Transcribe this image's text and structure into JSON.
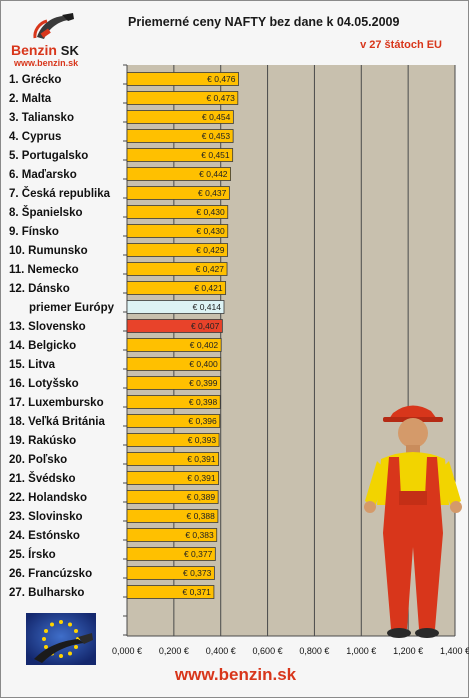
{
  "header": {
    "title": "Priemerné ceny NAFTY bez dane k 04.05.2009",
    "subtitle": "v 27 štátoch EU"
  },
  "logo": {
    "brand": "Benzin",
    "brand_suffix": "SK",
    "url": "www.benzin.sk"
  },
  "footer": {
    "url": "www.benzin.sk"
  },
  "colors": {
    "bar_default": "#ffc000",
    "bar_average": "#ddf3f5",
    "bar_slovakia": "#e8432a",
    "label_average": "#5aaee0",
    "label_slovakia": "#d8361b",
    "plot_background": "#c8c0ae",
    "grid_line": "#4a4a4a"
  },
  "icons": {
    "logo": "fuel-nozzle-icon",
    "eu": "eu-flag-fuel-nozzle-image",
    "mascot": "gas-station-worker-image"
  },
  "chart_data": {
    "type": "bar",
    "orientation": "horizontal",
    "title": "Priemerné ceny NAFTY bez dane k 04.05.2009",
    "subtitle": "v 27 štátoch EU",
    "xlim": [
      0,
      1.4
    ],
    "x_ticks": [
      "0,000 €",
      "0,200 €",
      "0,400 €",
      "0,600 €",
      "0,800 €",
      "1,000 €",
      "1,200 €",
      "1,400 €"
    ],
    "grid": true,
    "categories": [
      "1. Grécko",
      "2. Malta",
      "3. Taliansko",
      "4. Cyprus",
      "5. Portugalsko",
      "6. Maďarsko",
      "7. Česká republika",
      "8. Španielsko",
      "9. Fínsko",
      "10. Rumunsko",
      "11. Nemecko",
      "12. Dánsko",
      "priemer Európy",
      "13. Slovensko",
      "14. Belgicko",
      "15. Litva",
      "16. Lotyšsko",
      "17. Luxembursko",
      "18. Veľká Británia",
      "19. Rakúsko",
      "20. Poľsko",
      "21. Švédsko",
      "22. Holandsko",
      "23. Slovinsko",
      "24. Estónsko",
      "25. Írsko",
      "26. Francúzsko",
      "27. Bulharsko"
    ],
    "values": [
      0.476,
      0.473,
      0.454,
      0.453,
      0.451,
      0.442,
      0.437,
      0.43,
      0.43,
      0.429,
      0.427,
      0.421,
      0.414,
      0.407,
      0.402,
      0.4,
      0.399,
      0.398,
      0.396,
      0.393,
      0.391,
      0.391,
      0.389,
      0.388,
      0.383,
      0.377,
      0.373,
      0.371
    ],
    "value_labels": [
      "€ 0,476",
      "€ 0,473",
      "€ 0,454",
      "€ 0,453",
      "€ 0,451",
      "€ 0,442",
      "€ 0,437",
      "€ 0,430",
      "€ 0,430",
      "€ 0,429",
      "€ 0,427",
      "€ 0,421",
      "€ 0,414",
      "€ 0,407",
      "€ 0,402",
      "€ 0,400",
      "€ 0,399",
      "€ 0,398",
      "€ 0,396",
      "€ 0,393",
      "€ 0,391",
      "€ 0,391",
      "€ 0,389",
      "€ 0,388",
      "€ 0,383",
      "€ 0,377",
      "€ 0,373",
      "€ 0,371"
    ],
    "highlight": {
      "average": "priemer Európy",
      "focus": "13. Slovensko"
    }
  }
}
